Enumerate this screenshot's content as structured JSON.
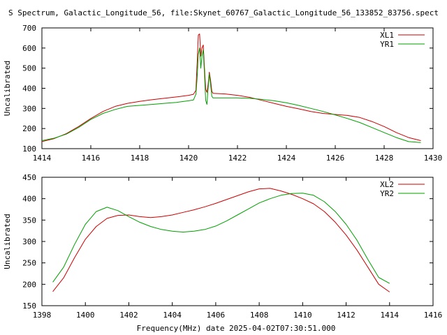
{
  "title": "S Spectrum, Galactic_Longitude_56, file:Skynet_60767_Galactic_Longitude_56_133852_83756.spect",
  "xlabel": "Frequency(MHz) date 2025-04-02T07:30:51.000",
  "colors": {
    "red": "#cc0000",
    "green": "#00a000"
  },
  "chart_data": [
    {
      "type": "line",
      "xlim": [
        1414,
        1430
      ],
      "ylim": [
        100,
        700
      ],
      "xticks": [
        1414,
        1416,
        1418,
        1420,
        1422,
        1424,
        1426,
        1428,
        1430
      ],
      "yticks": [
        100,
        200,
        300,
        400,
        500,
        600,
        700
      ],
      "ylabel": "Uncalibrated",
      "legend": "top-right",
      "series": [
        {
          "name": "XL1",
          "color": "#cc0000",
          "points": [
            [
              1414.0,
              135
            ],
            [
              1414.5,
              150
            ],
            [
              1415.0,
              175
            ],
            [
              1415.5,
              210
            ],
            [
              1416.0,
              250
            ],
            [
              1416.5,
              285
            ],
            [
              1417.0,
              310
            ],
            [
              1417.5,
              325
            ],
            [
              1418.0,
              335
            ],
            [
              1418.5,
              343
            ],
            [
              1419.0,
              350
            ],
            [
              1419.5,
              357
            ],
            [
              1420.0,
              365
            ],
            [
              1420.2,
              370
            ],
            [
              1420.3,
              390
            ],
            [
              1420.35,
              520
            ],
            [
              1420.4,
              665
            ],
            [
              1420.45,
              670
            ],
            [
              1420.5,
              560
            ],
            [
              1420.55,
              600
            ],
            [
              1420.6,
              615
            ],
            [
              1420.65,
              500
            ],
            [
              1420.7,
              395
            ],
            [
              1420.75,
              380
            ],
            [
              1420.8,
              420
            ],
            [
              1420.85,
              480
            ],
            [
              1420.9,
              440
            ],
            [
              1420.95,
              385
            ],
            [
              1421.0,
              375
            ],
            [
              1421.5,
              372
            ],
            [
              1422.0,
              365
            ],
            [
              1422.5,
              355
            ],
            [
              1423.0,
              340
            ],
            [
              1423.5,
              325
            ],
            [
              1424.0,
              310
            ],
            [
              1424.5,
              298
            ],
            [
              1425.0,
              285
            ],
            [
              1425.5,
              275
            ],
            [
              1426.0,
              270
            ],
            [
              1426.5,
              265
            ],
            [
              1427.0,
              255
            ],
            [
              1427.5,
              235
            ],
            [
              1428.0,
              210
            ],
            [
              1428.5,
              180
            ],
            [
              1429.0,
              155
            ],
            [
              1429.5,
              140
            ]
          ]
        },
        {
          "name": "YR1",
          "color": "#00a000",
          "points": [
            [
              1414.0,
              140
            ],
            [
              1414.5,
              152
            ],
            [
              1415.0,
              172
            ],
            [
              1415.5,
              205
            ],
            [
              1416.0,
              245
            ],
            [
              1416.5,
              275
            ],
            [
              1417.0,
              295
            ],
            [
              1417.5,
              310
            ],
            [
              1418.0,
              315
            ],
            [
              1418.5,
              320
            ],
            [
              1419.0,
              325
            ],
            [
              1419.5,
              330
            ],
            [
              1420.0,
              338
            ],
            [
              1420.2,
              342
            ],
            [
              1420.3,
              370
            ],
            [
              1420.35,
              450
            ],
            [
              1420.4,
              570
            ],
            [
              1420.45,
              600
            ],
            [
              1420.5,
              500
            ],
            [
              1420.55,
              560
            ],
            [
              1420.6,
              590
            ],
            [
              1420.65,
              470
            ],
            [
              1420.7,
              340
            ],
            [
              1420.75,
              320
            ],
            [
              1420.8,
              400
            ],
            [
              1420.85,
              470
            ],
            [
              1420.9,
              420
            ],
            [
              1420.95,
              360
            ],
            [
              1421.0,
              352
            ],
            [
              1421.5,
              352
            ],
            [
              1422.0,
              352
            ],
            [
              1422.5,
              350
            ],
            [
              1423.0,
              345
            ],
            [
              1423.5,
              338
            ],
            [
              1424.0,
              328
            ],
            [
              1424.5,
              315
            ],
            [
              1425.0,
              300
            ],
            [
              1425.5,
              285
            ],
            [
              1426.0,
              268
            ],
            [
              1426.5,
              250
            ],
            [
              1427.0,
              230
            ],
            [
              1427.5,
              205
            ],
            [
              1428.0,
              180
            ],
            [
              1428.5,
              155
            ],
            [
              1429.0,
              135
            ],
            [
              1429.5,
              130
            ]
          ]
        }
      ]
    },
    {
      "type": "line",
      "xlim": [
        1398,
        1416
      ],
      "ylim": [
        150,
        450
      ],
      "xticks": [
        1398,
        1400,
        1402,
        1404,
        1406,
        1408,
        1410,
        1412,
        1414,
        1416
      ],
      "yticks": [
        150,
        200,
        250,
        300,
        350,
        400,
        450
      ],
      "ylabel": "Uncalibrated",
      "legend": "top-right",
      "series": [
        {
          "name": "XL2",
          "color": "#cc0000",
          "points": [
            [
              1398.5,
              183
            ],
            [
              1399.0,
              215
            ],
            [
              1399.5,
              262
            ],
            [
              1400.0,
              305
            ],
            [
              1400.5,
              335
            ],
            [
              1401.0,
              354
            ],
            [
              1401.5,
              361
            ],
            [
              1402.0,
              362
            ],
            [
              1402.5,
              358
            ],
            [
              1403.0,
              356
            ],
            [
              1403.5,
              358
            ],
            [
              1404.0,
              362
            ],
            [
              1404.5,
              368
            ],
            [
              1405.0,
              374
            ],
            [
              1405.5,
              381
            ],
            [
              1406.0,
              389
            ],
            [
              1406.5,
              398
            ],
            [
              1407.0,
              407
            ],
            [
              1407.5,
              416
            ],
            [
              1408.0,
              423
            ],
            [
              1408.5,
              424
            ],
            [
              1409.0,
              418
            ],
            [
              1409.5,
              410
            ],
            [
              1410.0,
              400
            ],
            [
              1410.5,
              388
            ],
            [
              1411.0,
              370
            ],
            [
              1411.5,
              345
            ],
            [
              1412.0,
              315
            ],
            [
              1412.5,
              280
            ],
            [
              1413.0,
              240
            ],
            [
              1413.5,
              200
            ],
            [
              1414.0,
              182
            ]
          ]
        },
        {
          "name": "YR2",
          "color": "#00a000",
          "points": [
            [
              1398.5,
              205
            ],
            [
              1399.0,
              240
            ],
            [
              1399.5,
              293
            ],
            [
              1400.0,
              340
            ],
            [
              1400.5,
              370
            ],
            [
              1401.0,
              380
            ],
            [
              1401.5,
              372
            ],
            [
              1402.0,
              358
            ],
            [
              1402.5,
              345
            ],
            [
              1403.0,
              335
            ],
            [
              1403.5,
              328
            ],
            [
              1404.0,
              324
            ],
            [
              1404.5,
              322
            ],
            [
              1405.0,
              324
            ],
            [
              1405.5,
              328
            ],
            [
              1406.0,
              336
            ],
            [
              1406.5,
              348
            ],
            [
              1407.0,
              362
            ],
            [
              1407.5,
              376
            ],
            [
              1408.0,
              390
            ],
            [
              1408.5,
              400
            ],
            [
              1409.0,
              408
            ],
            [
              1409.5,
              412
            ],
            [
              1410.0,
              413
            ],
            [
              1410.5,
              408
            ],
            [
              1411.0,
              393
            ],
            [
              1411.5,
              370
            ],
            [
              1412.0,
              340
            ],
            [
              1412.5,
              303
            ],
            [
              1413.0,
              258
            ],
            [
              1413.5,
              216
            ],
            [
              1414.0,
              202
            ]
          ]
        }
      ]
    }
  ]
}
